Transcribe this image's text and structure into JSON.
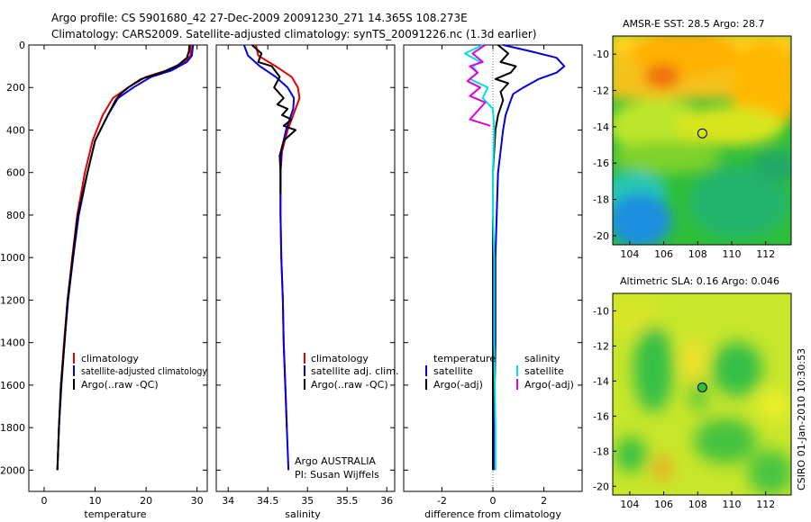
{
  "header": {
    "line1": "Argo profile: CS 5901680_42 27-Dec-2009 20091230_271 14.365S 108.273E",
    "line2": "Climatology: CARS2009. Satellite-adjusted climatology: synTS_20091226.nc (1.3d earlier)"
  },
  "side_label": "CSIRO 01-Jan-2010 10:30:53",
  "colors": {
    "climatology": "#e00000",
    "satellite": "#0000e0",
    "argo": "#000000",
    "sal_satellite": "#00e0e0",
    "sal_argo": "#e000e0"
  },
  "chart_data": [
    {
      "type": "line",
      "title": "",
      "xlabel": "temperature",
      "ylabel": "",
      "xlim": [
        -3,
        32
      ],
      "ylim": [
        2100,
        0
      ],
      "xticks": [
        "0",
        "10",
        "20",
        "30"
      ],
      "xtick_values": [
        0,
        10,
        20,
        30
      ],
      "yticks": [
        "0",
        "200",
        "400",
        "600",
        "800",
        "1000",
        "1200",
        "1400",
        "1600",
        "1800",
        "2000"
      ],
      "ytick_values": [
        0,
        200,
        400,
        600,
        800,
        1000,
        1200,
        1400,
        1600,
        1800,
        2000
      ],
      "legend": [
        "climatology",
        "satellite-adjusted climatology",
        "Argo(..raw -QC)"
      ],
      "series": [
        {
          "name": "climatology",
          "color": "#e00000",
          "x": [
            28.8,
            28.7,
            27.5,
            24,
            20,
            16.5,
            13.5,
            11.5,
            9.5,
            8,
            6.5,
            5.5,
            4.6,
            3.9,
            3.3,
            2.9,
            2.6
          ],
          "y": [
            0,
            50,
            80,
            120,
            150,
            200,
            250,
            330,
            450,
            600,
            800,
            1000,
            1200,
            1400,
            1600,
            1800,
            2000
          ]
        },
        {
          "name": "satellite-adjusted climatology",
          "color": "#0000e0",
          "x": [
            29.2,
            29,
            28,
            25,
            21,
            17.5,
            14.5,
            12.5,
            10,
            8.5,
            6.8,
            5.7,
            4.7,
            4,
            3.4,
            2.9,
            2.6
          ],
          "y": [
            0,
            50,
            80,
            120,
            150,
            200,
            250,
            330,
            450,
            600,
            800,
            1000,
            1200,
            1400,
            1600,
            1800,
            2000
          ]
        },
        {
          "name": "Argo(..raw -QC)",
          "color": "#000000",
          "x": [
            28.5,
            28.4,
            28,
            26,
            23,
            19,
            16.5,
            15,
            14,
            12.5,
            10,
            8.5,
            6.6,
            5.6,
            4.6,
            4,
            3.3,
            2.9,
            2.6
          ],
          "y": [
            0,
            30,
            60,
            100,
            130,
            160,
            200,
            230,
            260,
            330,
            450,
            600,
            800,
            1000,
            1200,
            1400,
            1600,
            1800,
            2000
          ]
        }
      ]
    },
    {
      "type": "line",
      "xlabel": "salinity",
      "xlim": [
        33.85,
        36.1
      ],
      "ylim": [
        2100,
        0
      ],
      "xticks": [
        "34",
        "34.5",
        "35",
        "35.5",
        "36"
      ],
      "xtick_values": [
        34,
        34.5,
        35,
        35.5,
        36
      ],
      "legend": [
        "climatology",
        "satellite adj. clim.",
        "Argo(..raw -QC)"
      ],
      "annotation": [
        "Argo AUSTRALIA",
        "PI: Susan Wijffels"
      ],
      "series": [
        {
          "name": "climatology",
          "color": "#e00000",
          "x": [
            34.35,
            34.38,
            34.6,
            34.8,
            34.88,
            34.9,
            34.85,
            34.75,
            34.68,
            34.66,
            34.66,
            34.67,
            34.69,
            34.7,
            34.72,
            34.74
          ],
          "y": [
            0,
            50,
            100,
            150,
            200,
            250,
            300,
            400,
            500,
            600,
            800,
            1000,
            1200,
            1400,
            1600,
            1800
          ]
        },
        {
          "name": "satellite adj. clim.",
          "color": "#0000e0",
          "x": [
            34.2,
            34.25,
            34.4,
            34.6,
            34.75,
            34.83,
            34.82,
            34.73,
            34.67,
            34.66,
            34.66,
            34.67,
            34.69,
            34.7,
            34.72,
            34.74,
            34.76
          ],
          "y": [
            0,
            50,
            100,
            150,
            200,
            250,
            300,
            400,
            500,
            600,
            800,
            1000,
            1200,
            1400,
            1600,
            1800,
            2000
          ]
        },
        {
          "name": "Argo(..raw -QC)",
          "color": "#000000",
          "x": [
            34.3,
            34.42,
            34.38,
            34.55,
            34.65,
            34.58,
            34.7,
            34.62,
            34.75,
            34.68,
            34.8,
            34.7,
            34.85,
            34.7,
            34.65,
            34.66,
            34.66
          ],
          "y": [
            0,
            40,
            80,
            100,
            150,
            200,
            250,
            280,
            300,
            330,
            350,
            380,
            400,
            450,
            520,
            600,
            700
          ]
        }
      ]
    },
    {
      "type": "line",
      "xlabel": "difference from climatology",
      "xlim": [
        -3.5,
        3.5
      ],
      "ylim": [
        2100,
        0
      ],
      "xticks": [
        "-2",
        "0",
        "2"
      ],
      "xtick_values": [
        -2,
        0,
        2
      ],
      "legend": [
        "temperature",
        "satellite",
        "Argo(-adj)",
        "salinity",
        "satellite",
        "Argo(-adj)"
      ],
      "series": [
        {
          "name": "temperature satellite",
          "color": "#0000e0",
          "x": [
            0.4,
            1.5,
            2.5,
            2.8,
            2.5,
            1.8,
            1.2,
            0.8,
            0.7,
            0.5,
            0.4,
            0.2,
            0.15,
            0.1,
            0.1,
            0.05,
            0.05
          ],
          "y": [
            0,
            30,
            60,
            100,
            130,
            160,
            200,
            230,
            260,
            330,
            400,
            600,
            800,
            1000,
            1400,
            1800,
            2000
          ]
        },
        {
          "name": "temperature Argo(-adj)",
          "color": "#000000",
          "x": [
            0.2,
            0.6,
            0.3,
            0.9,
            0.7,
            0.1,
            0.6,
            0.3,
            0.4,
            0.2,
            0.1,
            0,
            0,
            0,
            0,
            0,
            0
          ],
          "y": [
            0,
            40,
            80,
            100,
            130,
            160,
            180,
            220,
            260,
            330,
            400,
            600,
            800,
            1000,
            1400,
            1800,
            2000
          ]
        },
        {
          "name": "salinity satellite",
          "color": "#00e0e0",
          "x": [
            -0.4,
            -1.1,
            -0.5,
            -0.8,
            -0.6,
            -0.9,
            -0.2,
            -0.4,
            0,
            0.05,
            0,
            0,
            0.05,
            0.05,
            0.1,
            0.1
          ],
          "y": [
            0,
            40,
            80,
            100,
            130,
            160,
            200,
            250,
            300,
            400,
            600,
            800,
            1000,
            1400,
            1800,
            2000
          ]
        },
        {
          "name": "salinity Argo(-adj)",
          "color": "#e000e0",
          "x": [
            -0.3,
            -0.8,
            -0.4,
            -0.9,
            -0.6,
            -1.0,
            -0.5,
            -0.9,
            -0.3,
            -0.9,
            -0.1
          ],
          "y": [
            0,
            40,
            80,
            100,
            130,
            170,
            200,
            240,
            270,
            350,
            380
          ]
        }
      ]
    },
    {
      "type": "heatmap",
      "title": "AMSR-E SST: 28.5  Argo: 28.7",
      "xlim": [
        103,
        113.5
      ],
      "ylim": [
        -20.5,
        -9
      ],
      "xticks": [
        "104",
        "106",
        "108",
        "110",
        "112"
      ],
      "xtick_values": [
        104,
        106,
        108,
        110,
        112
      ],
      "yticks": [
        "-10",
        "-12",
        "-14",
        "-16",
        "-18",
        "-20"
      ],
      "ytick_values": [
        -10,
        -12,
        -14,
        -16,
        -18,
        -20
      ],
      "marker": {
        "lon": 108.273,
        "lat": -14.365
      }
    },
    {
      "type": "heatmap",
      "title": "Altimetric SLA: 0.16  Argo: 0.046",
      "xlim": [
        103,
        113.5
      ],
      "ylim": [
        -20.5,
        -9
      ],
      "xticks": [
        "104",
        "106",
        "108",
        "110",
        "112"
      ],
      "xtick_values": [
        104,
        106,
        108,
        110,
        112
      ],
      "yticks": [
        "-10",
        "-12",
        "-14",
        "-16",
        "-18",
        "-20"
      ],
      "ytick_values": [
        -10,
        -12,
        -14,
        -16,
        -18,
        -20
      ],
      "marker": {
        "lon": 108.273,
        "lat": -14.365
      }
    }
  ]
}
